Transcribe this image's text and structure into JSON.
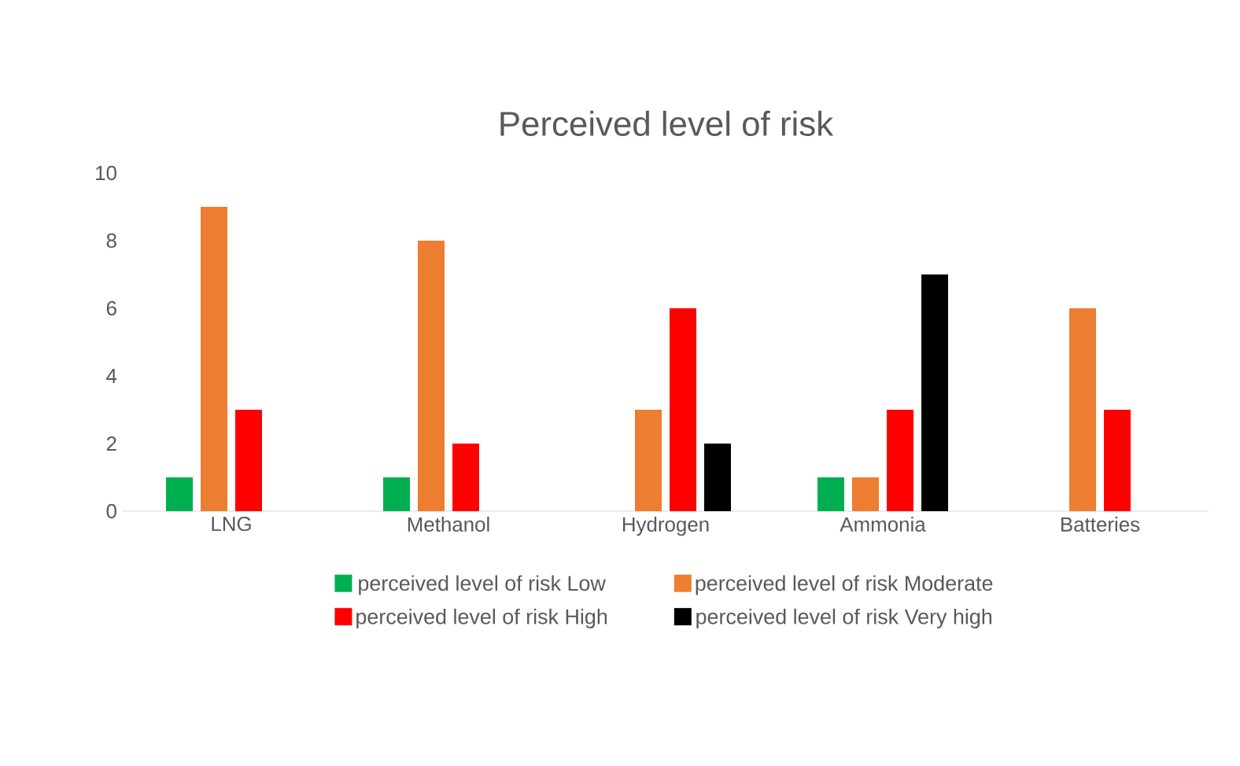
{
  "chart_data": {
    "type": "bar",
    "title": "Perceived level of risk",
    "categories": [
      "LNG",
      "Methanol",
      "Hydrogen",
      "Ammonia",
      "Batteries"
    ],
    "series": [
      {
        "name": "perceived level of risk Low",
        "color": "#00b050",
        "values": [
          1,
          1,
          null,
          1,
          null
        ]
      },
      {
        "name": "perceived level of risk Moderate",
        "color": "#ed7d31",
        "values": [
          9,
          8,
          3,
          1,
          6
        ]
      },
      {
        "name": "perceived level of risk High",
        "color": "#ff0000",
        "values": [
          3,
          2,
          6,
          3,
          3
        ]
      },
      {
        "name": "perceived level of risk Very high",
        "color": "#000000",
        "values": [
          null,
          null,
          2,
          7,
          null
        ]
      }
    ],
    "ylim": [
      0,
      10
    ],
    "yticks": [
      0,
      2,
      4,
      6,
      8,
      10
    ],
    "grid": false,
    "legend": "bottom"
  }
}
